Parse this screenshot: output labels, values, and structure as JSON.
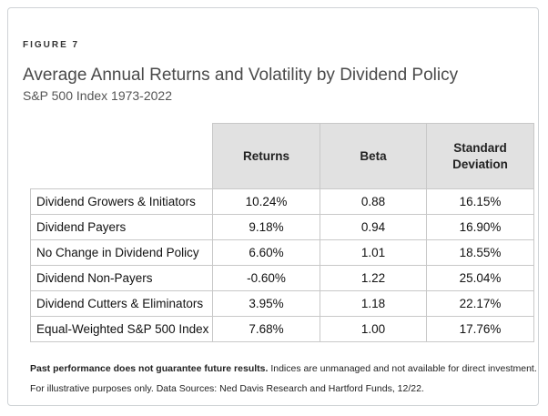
{
  "figure_label": "FIGURE 7",
  "title": "Average Annual Returns and Volatility by Dividend Policy",
  "subtitle": "S&P 500 Index 1973-2022",
  "table": {
    "headers": [
      "Returns",
      "Beta",
      "Standard Deviation"
    ],
    "rows": [
      {
        "label": "Dividend Growers & Initiators",
        "returns": "10.24%",
        "beta": "0.88",
        "std": "16.15%"
      },
      {
        "label": "Dividend Payers",
        "returns": "9.18%",
        "beta": "0.94",
        "std": "16.90%"
      },
      {
        "label": "No Change in Dividend Policy",
        "returns": "6.60%",
        "beta": "1.01",
        "std": "18.55%"
      },
      {
        "label": "Dividend Non-Payers",
        "returns": "-0.60%",
        "beta": "1.22",
        "std": "25.04%"
      },
      {
        "label": "Dividend Cutters & Eliminators",
        "returns": "3.95%",
        "beta": "1.18",
        "std": "22.17%"
      },
      {
        "label": "Equal-Weighted S&P 500 Index",
        "returns": "7.68%",
        "beta": "1.00",
        "std": "17.76%"
      }
    ]
  },
  "notes": {
    "bold": "Past performance does not guarantee future results.",
    "rest": " Indices are unmanaged and not available for direct investment.",
    "line2": "For illustrative purposes only. Data Sources: Ned Davis Research and Hartford Funds, 12/22."
  },
  "colors": {
    "header_bg": "#e1e1e1",
    "border": "#c8c8c8",
    "card_border": "#cfd3d6"
  }
}
